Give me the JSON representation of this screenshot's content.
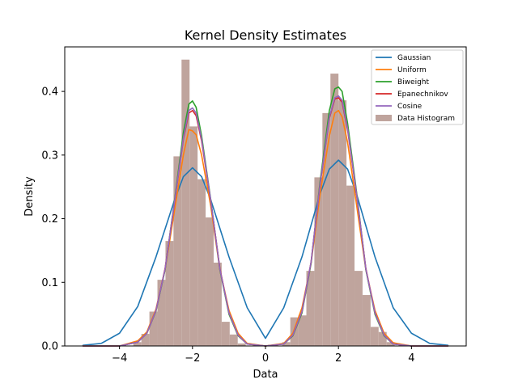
{
  "chart_data": {
    "type": "line",
    "title": "Kernel Density Estimates",
    "xlabel": "Data",
    "ylabel": "Density",
    "xlim": [
      -5.5,
      5.5
    ],
    "ylim": [
      0,
      0.47
    ],
    "x_ticks": [
      -4,
      -2,
      0,
      2,
      4
    ],
    "y_ticks": [
      0.0,
      0.1,
      0.2,
      0.3,
      0.4
    ],
    "grid": false,
    "legend_position": "top-right",
    "histogram": {
      "name": "Data Histogram",
      "color": "#bfa49d",
      "bins": [
        {
          "x0": -3.62,
          "x1": -3.4,
          "y": 0.006
        },
        {
          "x0": -3.4,
          "x1": -3.18,
          "y": 0.019
        },
        {
          "x0": -3.18,
          "x1": -2.96,
          "y": 0.054
        },
        {
          "x0": -2.96,
          "x1": -2.74,
          "y": 0.104
        },
        {
          "x0": -2.74,
          "x1": -2.52,
          "y": 0.165
        },
        {
          "x0": -2.52,
          "x1": -2.3,
          "y": 0.298
        },
        {
          "x0": -2.3,
          "x1": -2.08,
          "y": 0.45
        },
        {
          "x0": -2.08,
          "x1": -1.86,
          "y": 0.345
        },
        {
          "x0": -1.86,
          "x1": -1.64,
          "y": 0.262
        },
        {
          "x0": -1.64,
          "x1": -1.42,
          "y": 0.202
        },
        {
          "x0": -1.42,
          "x1": -1.2,
          "y": 0.131
        },
        {
          "x0": -1.2,
          "x1": -0.98,
          "y": 0.038
        },
        {
          "x0": -0.98,
          "x1": -0.76,
          "y": 0.018
        },
        {
          "x0": -0.76,
          "x1": -0.54,
          "y": 0.004
        },
        {
          "x0": 0.46,
          "x1": 0.68,
          "y": 0.006
        },
        {
          "x0": 0.68,
          "x1": 0.9,
          "y": 0.045
        },
        {
          "x0": 0.9,
          "x1": 1.12,
          "y": 0.048
        },
        {
          "x0": 1.12,
          "x1": 1.34,
          "y": 0.118
        },
        {
          "x0": 1.34,
          "x1": 1.56,
          "y": 0.265
        },
        {
          "x0": 1.56,
          "x1": 1.78,
          "y": 0.366
        },
        {
          "x0": 1.78,
          "x1": 2.0,
          "y": 0.428
        },
        {
          "x0": 2.0,
          "x1": 2.22,
          "y": 0.386
        },
        {
          "x0": 2.22,
          "x1": 2.44,
          "y": 0.252
        },
        {
          "x0": 2.44,
          "x1": 2.66,
          "y": 0.118
        },
        {
          "x0": 2.66,
          "x1": 2.88,
          "y": 0.08
        },
        {
          "x0": 2.88,
          "x1": 3.1,
          "y": 0.03
        },
        {
          "x0": 3.1,
          "x1": 3.32,
          "y": 0.022
        },
        {
          "x0": 3.32,
          "x1": 3.54,
          "y": 0.006
        }
      ]
    },
    "series": [
      {
        "name": "Gaussian",
        "color": "#1f77b4",
        "x": [
          -5.0,
          -4.5,
          -4.0,
          -3.5,
          -3.0,
          -2.5,
          -2.25,
          -2.0,
          -1.75,
          -1.5,
          -1.0,
          -0.5,
          0.0,
          0.5,
          1.0,
          1.5,
          1.75,
          2.0,
          2.25,
          2.5,
          3.0,
          3.5,
          4.0,
          4.5,
          5.0
        ],
        "y": [
          0.001,
          0.004,
          0.02,
          0.062,
          0.14,
          0.228,
          0.266,
          0.28,
          0.266,
          0.23,
          0.14,
          0.06,
          0.012,
          0.06,
          0.14,
          0.24,
          0.278,
          0.292,
          0.278,
          0.238,
          0.14,
          0.06,
          0.02,
          0.004,
          0.001
        ]
      },
      {
        "name": "Uniform",
        "color": "#ff7f0e",
        "x": [
          -5.0,
          -4.0,
          -3.5,
          -3.25,
          -3.0,
          -2.75,
          -2.5,
          -2.25,
          -2.1,
          -2.0,
          -1.9,
          -1.75,
          -1.5,
          -1.25,
          -1.0,
          -0.75,
          -0.5,
          0.0,
          0.5,
          0.75,
          1.0,
          1.25,
          1.5,
          1.75,
          1.9,
          2.0,
          2.1,
          2.25,
          2.5,
          2.75,
          3.0,
          3.25,
          3.5,
          4.0,
          5.0
        ],
        "y": [
          0.0,
          0.0,
          0.008,
          0.022,
          0.058,
          0.12,
          0.21,
          0.3,
          0.34,
          0.338,
          0.332,
          0.3,
          0.22,
          0.12,
          0.056,
          0.02,
          0.004,
          0.0,
          0.004,
          0.02,
          0.06,
          0.13,
          0.24,
          0.33,
          0.366,
          0.37,
          0.36,
          0.32,
          0.22,
          0.12,
          0.056,
          0.02,
          0.005,
          0.0,
          0.0
        ]
      },
      {
        "name": "Biweight",
        "color": "#2ca02c",
        "x": [
          -5.0,
          -4.0,
          -3.5,
          -3.25,
          -3.0,
          -2.75,
          -2.5,
          -2.25,
          -2.1,
          -2.0,
          -1.9,
          -1.75,
          -1.5,
          -1.25,
          -1.0,
          -0.75,
          -0.5,
          0.0,
          0.5,
          0.75,
          1.0,
          1.25,
          1.5,
          1.75,
          1.9,
          2.0,
          2.1,
          2.25,
          2.5,
          2.75,
          3.0,
          3.25,
          3.5,
          4.0,
          5.0
        ],
        "y": [
          0.0,
          0.0,
          0.006,
          0.02,
          0.055,
          0.12,
          0.225,
          0.335,
          0.38,
          0.385,
          0.375,
          0.33,
          0.23,
          0.12,
          0.05,
          0.016,
          0.003,
          0.0,
          0.003,
          0.016,
          0.052,
          0.13,
          0.26,
          0.37,
          0.404,
          0.407,
          0.4,
          0.35,
          0.24,
          0.12,
          0.05,
          0.016,
          0.003,
          0.0,
          0.0
        ]
      },
      {
        "name": "Epanechnikov",
        "color": "#d62728",
        "x": [
          -5.0,
          -4.0,
          -3.5,
          -3.25,
          -3.0,
          -2.75,
          -2.5,
          -2.25,
          -2.1,
          -2.0,
          -1.9,
          -1.75,
          -1.5,
          -1.25,
          -1.0,
          -0.75,
          -0.5,
          0.0,
          0.5,
          0.75,
          1.0,
          1.25,
          1.5,
          1.75,
          1.9,
          2.0,
          2.1,
          2.25,
          2.5,
          2.75,
          3.0,
          3.25,
          3.5,
          4.0,
          5.0
        ],
        "y": [
          0.0,
          0.0,
          0.006,
          0.02,
          0.056,
          0.122,
          0.222,
          0.325,
          0.366,
          0.37,
          0.362,
          0.322,
          0.228,
          0.122,
          0.052,
          0.017,
          0.003,
          0.0,
          0.003,
          0.017,
          0.054,
          0.132,
          0.255,
          0.358,
          0.388,
          0.39,
          0.383,
          0.34,
          0.236,
          0.122,
          0.052,
          0.017,
          0.003,
          0.0,
          0.0
        ]
      },
      {
        "name": "Cosine",
        "color": "#9467bd",
        "x": [
          -5.0,
          -4.0,
          -3.5,
          -3.25,
          -3.0,
          -2.75,
          -2.5,
          -2.25,
          -2.1,
          -2.0,
          -1.9,
          -1.75,
          -1.5,
          -1.25,
          -1.0,
          -0.75,
          -0.5,
          0.0,
          0.5,
          0.75,
          1.0,
          1.25,
          1.5,
          1.75,
          1.9,
          2.0,
          2.1,
          2.25,
          2.5,
          2.75,
          3.0,
          3.25,
          3.5,
          4.0,
          5.0
        ],
        "y": [
          0.0,
          0.0,
          0.006,
          0.02,
          0.056,
          0.121,
          0.223,
          0.327,
          0.37,
          0.374,
          0.366,
          0.325,
          0.229,
          0.121,
          0.052,
          0.017,
          0.003,
          0.0,
          0.003,
          0.017,
          0.054,
          0.132,
          0.256,
          0.36,
          0.39,
          0.393,
          0.386,
          0.342,
          0.237,
          0.121,
          0.052,
          0.017,
          0.003,
          0.0,
          0.0
        ]
      }
    ]
  }
}
